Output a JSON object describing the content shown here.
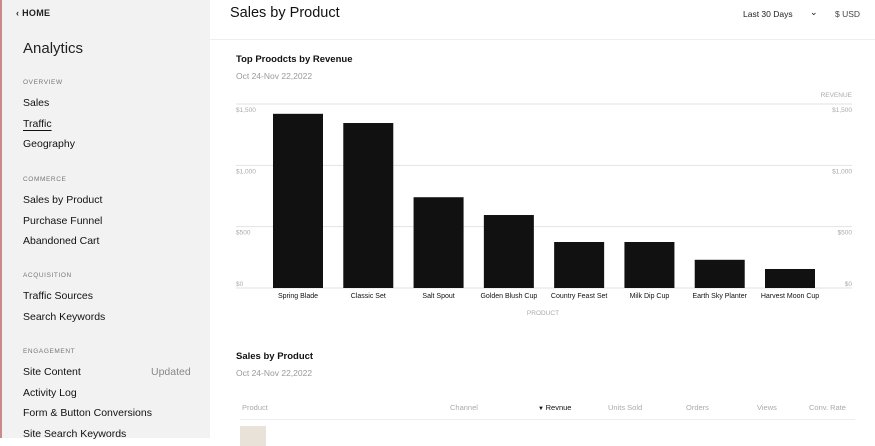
{
  "sidebar": {
    "home": "HOME",
    "title": "Analytics",
    "sections": [
      {
        "label": "OVERVIEW",
        "items": [
          "Sales",
          "Traffic",
          "Geography"
        ]
      },
      {
        "label": "COMMERCE",
        "items": [
          "Sales by Product",
          "Purchase Funnel",
          "Abandoned Cart"
        ]
      },
      {
        "label": "ACQUISITION",
        "items": [
          "Traffic Sources",
          "Search Keywords"
        ]
      },
      {
        "label": "ENGAGEMENT",
        "items": [
          "Site Content",
          "Activity Log",
          "Form & Button Conversions",
          "Site Search Keywords"
        ]
      }
    ],
    "active": "Traffic",
    "site_content_badge": "Updated"
  },
  "header": {
    "title": "Sales by Product",
    "range": "Last 30 Days",
    "currency": "$ USD"
  },
  "chart_card": {
    "title": "Top Proodcts by Revenue",
    "date_range": "Oct 24-Nov 22,2022"
  },
  "chart_data": {
    "type": "bar",
    "title": "Top Proodcts by Revenue",
    "xlabel": "PRODUCT",
    "ylabel": "REVENUE",
    "categories": [
      "Spring Blade",
      "Classic Set",
      "Salt Spout",
      "Golden Blush Cup",
      "Country Feast Set",
      "Milk Dip Cup",
      "Earth Sky Planter",
      "Harvest Moon Cup"
    ],
    "values": [
      1420,
      1345,
      740,
      595,
      375,
      375,
      230,
      155
    ],
    "ylim": [
      0,
      1500
    ],
    "yticks": [
      "$0",
      "$500",
      "$1,000",
      "$1,500"
    ],
    "grid": true,
    "bar_color": "#111111"
  },
  "table": {
    "title": "Sales by Product",
    "date_range": "Oct 24-Nov 22,2022",
    "columns": [
      "Product",
      "Channel",
      "Revenue",
      "Units Sold",
      "Orders",
      "Views",
      "Conv. Rate"
    ],
    "sorted_column": "Revnue"
  }
}
